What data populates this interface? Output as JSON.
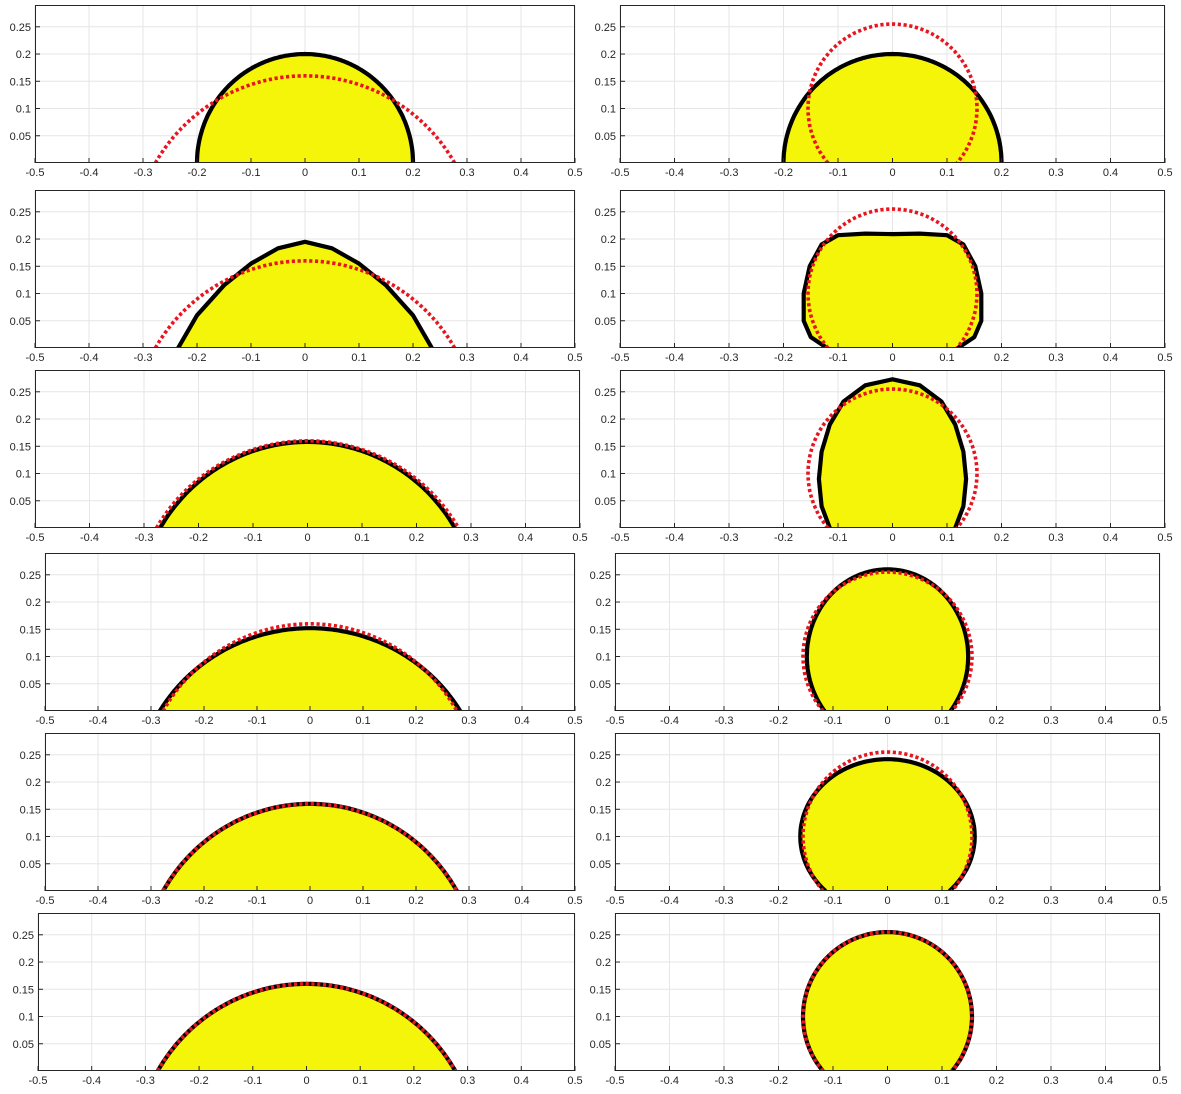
{
  "chart_data": [
    {
      "type": "area",
      "panel": "left-1",
      "xlim": [
        -0.5,
        0.5
      ],
      "ylim": [
        0,
        0.29
      ],
      "grid": true,
      "xticks": [
        "-0.5",
        "-0.4",
        "-0.3",
        "-0.2",
        "-0.1",
        "0",
        "0.1",
        "0.2",
        "0.3",
        "0.4",
        "0.5"
      ],
      "yticks": [
        "0.05",
        "0.1",
        "0.15",
        "0.2",
        "0.25"
      ],
      "series": [
        {
          "style": "filled-solid",
          "shape": "circle-cap",
          "cx": 0,
          "cy": 0,
          "rx": 0.2,
          "ry": 0.2
        },
        {
          "style": "dotted",
          "shape": "circle-cap",
          "cx": 0,
          "cy": -0.16,
          "rx": 0.32,
          "ry": 0.32
        }
      ]
    },
    {
      "type": "area",
      "panel": "right-1",
      "xlim": [
        -0.5,
        0.5
      ],
      "ylim": [
        0,
        0.29
      ],
      "grid": true,
      "xticks": [
        "-0.5",
        "-0.4",
        "-0.3",
        "-0.2",
        "-0.1",
        "0",
        "0.1",
        "0.2",
        "0.3",
        "0.4",
        "0.5"
      ],
      "yticks": [
        "0.05",
        "0.1",
        "0.15",
        "0.2",
        "0.25"
      ],
      "series": [
        {
          "style": "filled-solid",
          "shape": "circle-cap",
          "cx": 0,
          "cy": 0,
          "rx": 0.2,
          "ry": 0.2
        },
        {
          "style": "dotted",
          "shape": "circle-cap",
          "cx": 0,
          "cy": 0.1,
          "rx": 0.155,
          "ry": 0.155
        }
      ]
    },
    {
      "type": "area",
      "panel": "left-2",
      "xlim": [
        -0.5,
        0.5
      ],
      "ylim": [
        0,
        0.29
      ],
      "grid": true,
      "xticks": [
        "-0.5",
        "-0.4",
        "-0.3",
        "-0.2",
        "-0.1",
        "0",
        "0.1",
        "0.2",
        "0.3",
        "0.4",
        "0.5"
      ],
      "yticks": [
        "0.05",
        "0.1",
        "0.15",
        "0.2",
        "0.25"
      ],
      "series": [
        {
          "style": "filled-solid",
          "shape": "polyline",
          "points": [
            [
              -0.235,
              0
            ],
            [
              -0.2,
              0.06
            ],
            [
              -0.15,
              0.115
            ],
            [
              -0.1,
              0.155
            ],
            [
              -0.05,
              0.183
            ],
            [
              0,
              0.195
            ],
            [
              0.05,
              0.183
            ],
            [
              0.1,
              0.155
            ],
            [
              0.15,
              0.115
            ],
            [
              0.2,
              0.06
            ],
            [
              0.235,
              0
            ]
          ]
        },
        {
          "style": "dotted",
          "shape": "circle-cap",
          "cx": 0,
          "cy": -0.16,
          "rx": 0.32,
          "ry": 0.32
        }
      ]
    },
    {
      "type": "area",
      "panel": "right-2",
      "xlim": [
        -0.5,
        0.5
      ],
      "ylim": [
        0,
        0.29
      ],
      "grid": true,
      "xticks": [
        "-0.5",
        "-0.4",
        "-0.3",
        "-0.2",
        "-0.1",
        "0",
        "0.1",
        "0.2",
        "0.3",
        "0.4",
        "0.5"
      ],
      "yticks": [
        "0.05",
        "0.1",
        "0.15",
        "0.2",
        "0.25"
      ],
      "series": [
        {
          "style": "filled-solid",
          "shape": "polyline",
          "points": [
            [
              -0.12,
              0
            ],
            [
              -0.15,
              0.02
            ],
            [
              -0.163,
              0.05
            ],
            [
              -0.163,
              0.1
            ],
            [
              -0.152,
              0.15
            ],
            [
              -0.13,
              0.19
            ],
            [
              -0.1,
              0.207
            ],
            [
              -0.05,
              0.21
            ],
            [
              0,
              0.209
            ],
            [
              0.05,
              0.21
            ],
            [
              0.1,
              0.207
            ],
            [
              0.13,
              0.19
            ],
            [
              0.152,
              0.15
            ],
            [
              0.163,
              0.1
            ],
            [
              0.163,
              0.05
            ],
            [
              0.15,
              0.02
            ],
            [
              0.12,
              0
            ]
          ]
        },
        {
          "style": "dotted",
          "shape": "circle-cap",
          "cx": 0,
          "cy": 0.1,
          "rx": 0.155,
          "ry": 0.155
        }
      ]
    },
    {
      "type": "area",
      "panel": "left-3",
      "xlim": [
        -0.5,
        0.5
      ],
      "ylim": [
        0,
        0.29
      ],
      "grid": true,
      "xticks": [
        "-0.5",
        "-0.4",
        "-0.3",
        "-0.2",
        "-0.1",
        "0",
        "0.1",
        "0.2",
        "0.3",
        "0.4",
        "0.5"
      ],
      "yticks": [
        "0.05",
        "0.1",
        "0.15",
        "0.2",
        "0.25"
      ],
      "series": [
        {
          "style": "filled-solid",
          "shape": "circle-cap",
          "cx": 0,
          "cy": -0.16,
          "rx": 0.313,
          "ry": 0.318
        },
        {
          "style": "dotted",
          "shape": "circle-cap",
          "cx": 0,
          "cy": -0.16,
          "rx": 0.32,
          "ry": 0.32
        }
      ]
    },
    {
      "type": "area",
      "panel": "right-3",
      "xlim": [
        -0.5,
        0.5
      ],
      "ylim": [
        0,
        0.29
      ],
      "grid": true,
      "xticks": [
        "-0.5",
        "-0.4",
        "-0.3",
        "-0.2",
        "-0.1",
        "0",
        "0.1",
        "0.2",
        "0.3",
        "0.4",
        "0.5"
      ],
      "yticks": [
        "0.05",
        "0.1",
        "0.15",
        "0.2",
        "0.25"
      ],
      "series": [
        {
          "style": "filled-solid",
          "shape": "polyline",
          "points": [
            [
              -0.115,
              0
            ],
            [
              -0.13,
              0.04
            ],
            [
              -0.135,
              0.09
            ],
            [
              -0.13,
              0.14
            ],
            [
              -0.115,
              0.19
            ],
            [
              -0.09,
              0.232
            ],
            [
              -0.05,
              0.262
            ],
            [
              0,
              0.273
            ],
            [
              0.05,
              0.262
            ],
            [
              0.09,
              0.232
            ],
            [
              0.115,
              0.19
            ],
            [
              0.13,
              0.14
            ],
            [
              0.135,
              0.09
            ],
            [
              0.13,
              0.04
            ],
            [
              0.115,
              0
            ]
          ]
        },
        {
          "style": "dotted",
          "shape": "circle-cap",
          "cx": 0,
          "cy": 0.1,
          "rx": 0.155,
          "ry": 0.155
        }
      ]
    },
    {
      "type": "area",
      "panel": "left-4",
      "xlim": [
        -0.5,
        0.5
      ],
      "ylim": [
        0,
        0.29
      ],
      "grid": true,
      "xticks": [
        "-0.5",
        "-0.4",
        "-0.3",
        "-0.2",
        "-0.1",
        "0",
        "0.1",
        "0.2",
        "0.3",
        "0.4",
        "0.5"
      ],
      "yticks": [
        "0.05",
        "0.1",
        "0.15",
        "0.2",
        "0.25"
      ],
      "series": [
        {
          "style": "filled-solid",
          "shape": "circle-cap",
          "cx": 0,
          "cy": -0.16,
          "rx": 0.33,
          "ry": 0.312
        },
        {
          "style": "dotted",
          "shape": "circle-cap",
          "cx": 0,
          "cy": -0.16,
          "rx": 0.32,
          "ry": 0.32
        }
      ]
    },
    {
      "type": "area",
      "panel": "right-4",
      "xlim": [
        -0.5,
        0.5
      ],
      "ylim": [
        0,
        0.29
      ],
      "grid": true,
      "xticks": [
        "-0.5",
        "-0.4",
        "-0.3",
        "-0.2",
        "-0.1",
        "0",
        "0.1",
        "0.2",
        "0.3",
        "0.4",
        "0.5"
      ],
      "yticks": [
        "0.05",
        "0.1",
        "0.15",
        "0.2",
        "0.25"
      ],
      "series": [
        {
          "style": "filled-solid",
          "shape": "circle-cap",
          "cx": 0,
          "cy": 0.1,
          "rx": 0.148,
          "ry": 0.16
        },
        {
          "style": "dotted",
          "shape": "circle-cap",
          "cx": 0,
          "cy": 0.1,
          "rx": 0.155,
          "ry": 0.155
        }
      ]
    },
    {
      "type": "area",
      "panel": "left-5",
      "xlim": [
        -0.5,
        0.5
      ],
      "ylim": [
        0,
        0.29
      ],
      "grid": true,
      "xticks": [
        "-0.5",
        "-0.4",
        "-0.3",
        "-0.2",
        "-0.1",
        "0",
        "0.1",
        "0.2",
        "0.3",
        "0.4",
        "0.5"
      ],
      "yticks": [
        "0.05",
        "0.1",
        "0.15",
        "0.2",
        "0.25"
      ],
      "series": [
        {
          "style": "filled-solid",
          "shape": "circle-cap",
          "cx": 0,
          "cy": -0.16,
          "rx": 0.32,
          "ry": 0.32
        },
        {
          "style": "dotted",
          "shape": "circle-cap",
          "cx": 0,
          "cy": -0.16,
          "rx": 0.32,
          "ry": 0.32
        }
      ]
    },
    {
      "type": "area",
      "panel": "right-5",
      "xlim": [
        -0.5,
        0.5
      ],
      "ylim": [
        0,
        0.29
      ],
      "grid": true,
      "xticks": [
        "-0.5",
        "-0.4",
        "-0.3",
        "-0.2",
        "-0.1",
        "0",
        "0.1",
        "0.2",
        "0.3",
        "0.4",
        "0.5"
      ],
      "yticks": [
        "0.05",
        "0.1",
        "0.15",
        "0.2",
        "0.25"
      ],
      "series": [
        {
          "style": "filled-solid",
          "shape": "circle-cap",
          "cx": 0,
          "cy": 0.1,
          "rx": 0.16,
          "ry": 0.142
        },
        {
          "style": "dotted",
          "shape": "circle-cap",
          "cx": 0,
          "cy": 0.1,
          "rx": 0.155,
          "ry": 0.155
        }
      ]
    },
    {
      "type": "area",
      "panel": "left-6",
      "xlim": [
        -0.5,
        0.5
      ],
      "ylim": [
        0,
        0.29
      ],
      "grid": true,
      "xticks": [
        "-0.5",
        "-0.4",
        "-0.3",
        "-0.2",
        "-0.1",
        "0",
        "0.1",
        "0.2",
        "0.3",
        "0.4",
        "0.5"
      ],
      "yticks": [
        "0.05",
        "0.1",
        "0.15",
        "0.2",
        "0.25"
      ],
      "series": [
        {
          "style": "filled-solid",
          "shape": "circle-cap",
          "cx": 0,
          "cy": -0.16,
          "rx": 0.32,
          "ry": 0.32
        },
        {
          "style": "dotted",
          "shape": "circle-cap",
          "cx": 0,
          "cy": -0.16,
          "rx": 0.32,
          "ry": 0.32
        }
      ]
    },
    {
      "type": "area",
      "panel": "right-6",
      "xlim": [
        -0.5,
        0.5
      ],
      "ylim": [
        0,
        0.29
      ],
      "grid": true,
      "xticks": [
        "-0.5",
        "-0.4",
        "-0.3",
        "-0.2",
        "-0.1",
        "0",
        "0.1",
        "0.2",
        "0.3",
        "0.4",
        "0.5"
      ],
      "yticks": [
        "0.05",
        "0.1",
        "0.15",
        "0.2",
        "0.25"
      ],
      "series": [
        {
          "style": "filled-solid",
          "shape": "circle-cap",
          "cx": 0,
          "cy": 0.1,
          "rx": 0.155,
          "ry": 0.155
        },
        {
          "style": "dotted",
          "shape": "circle-cap",
          "cx": 0,
          "cy": 0.1,
          "rx": 0.155,
          "ry": 0.155
        }
      ]
    }
  ],
  "colors": {
    "fill": "#f5f50a",
    "outline": "#000000",
    "dotted": "#e8141e",
    "grid": "#e6e6e6",
    "axes": "#262626"
  }
}
